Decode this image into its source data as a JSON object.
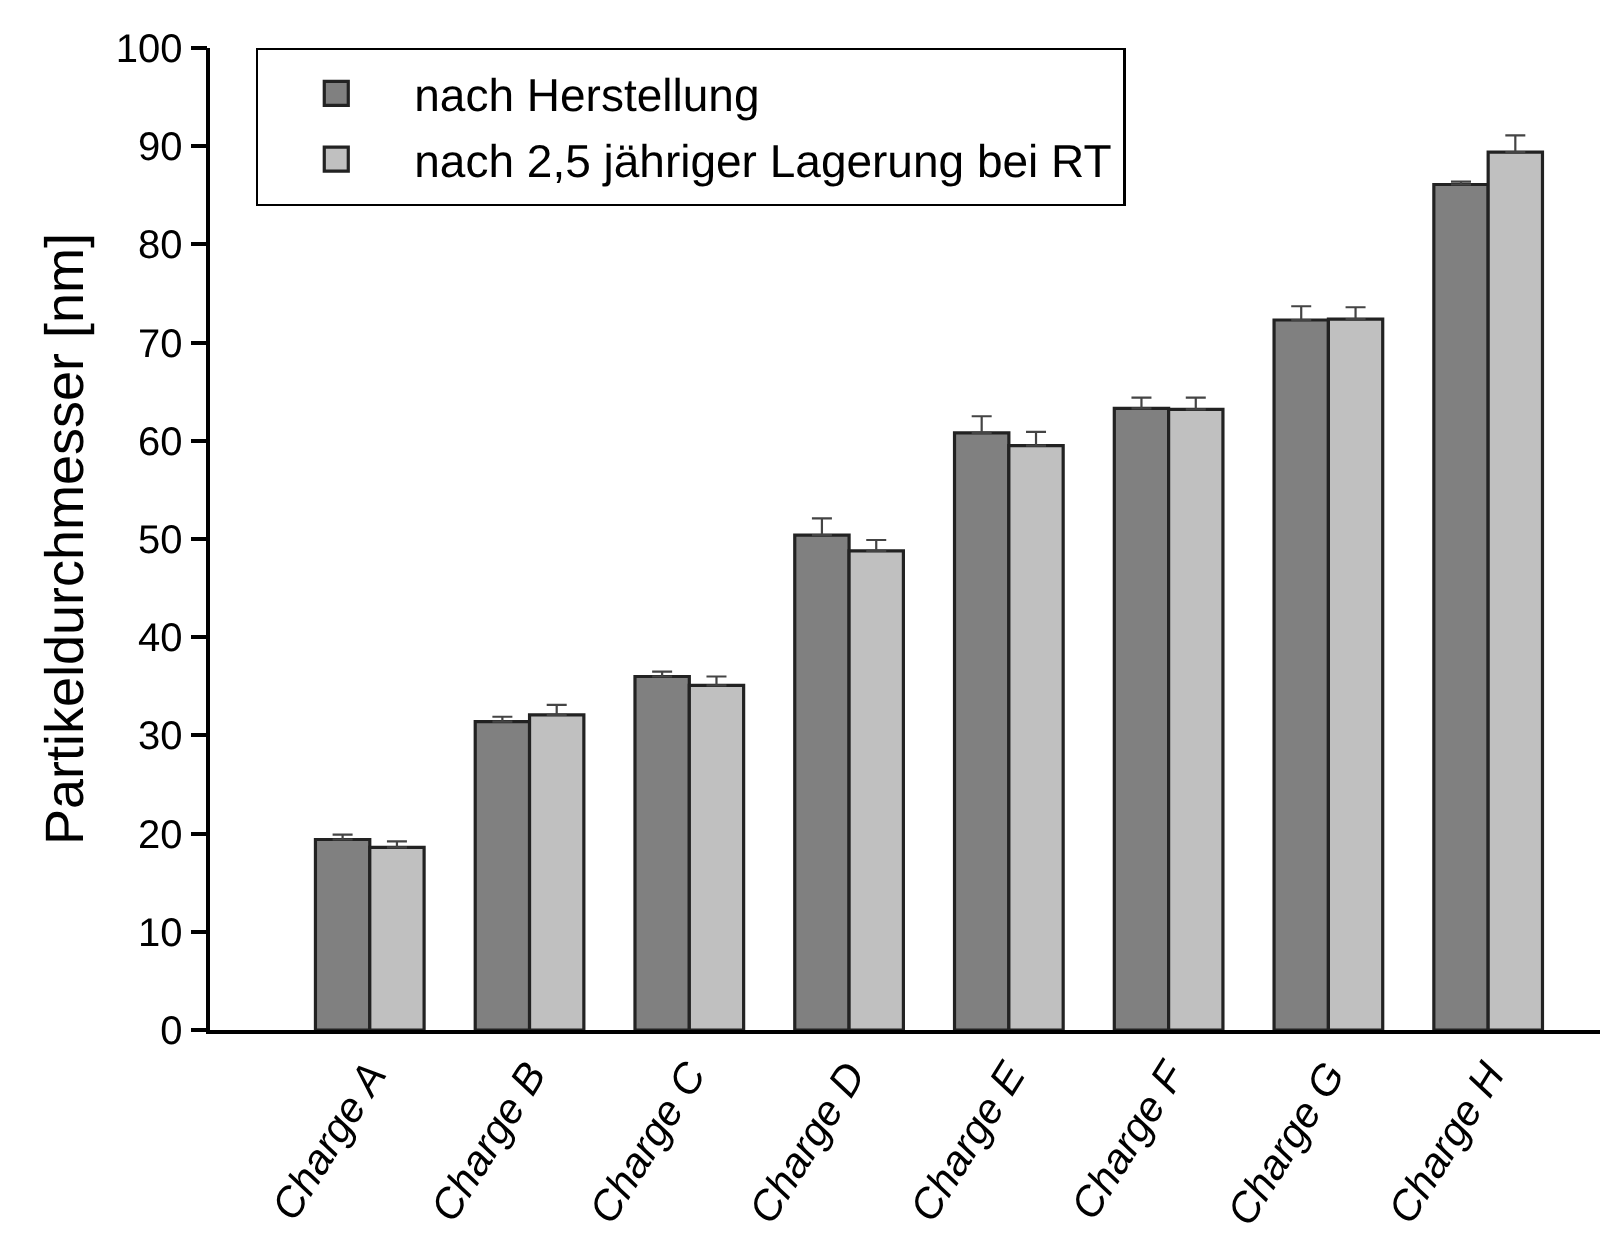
{
  "chart_data": {
    "type": "bar",
    "ylabel": "Partikeldurchmesser [nm]",
    "categories": [
      "Charge A",
      "Charge B",
      "Charge C",
      "Charge D",
      "Charge E",
      "Charge F",
      "Charge G",
      "Charge H"
    ],
    "series": [
      {
        "name": "nach Herstellung",
        "color": "#808080",
        "values": [
          19.4,
          31.4,
          36.0,
          50.4,
          60.8,
          63.3,
          72.3,
          86.1
        ],
        "errors": [
          [
            19.4,
            19.9
          ],
          [
            31.4,
            31.9
          ],
          [
            36.0,
            36.5
          ],
          [
            50.4,
            52.1
          ],
          [
            60.8,
            62.5
          ],
          [
            63.3,
            64.4
          ],
          [
            72.3,
            73.7
          ],
          [
            86.1,
            86.4
          ]
        ]
      },
      {
        "name": "nach 2,5 jähriger Lagerung bei RT",
        "color": "#c0c0c0",
        "values": [
          18.6,
          32.1,
          35.1,
          48.8,
          59.5,
          63.2,
          72.4,
          89.4
        ],
        "errors": [
          [
            18.6,
            19.2
          ],
          [
            32.1,
            33.1
          ],
          [
            35.1,
            36.0
          ],
          [
            48.8,
            49.9
          ],
          [
            59.5,
            60.9
          ],
          [
            63.2,
            64.4
          ],
          [
            72.4,
            73.6
          ],
          [
            89.4,
            91.1
          ]
        ]
      }
    ],
    "ylim": [
      0,
      100
    ],
    "yticks": [
      0,
      10,
      20,
      30,
      40,
      50,
      60,
      70,
      80,
      90,
      100
    ],
    "legend": "top left"
  }
}
